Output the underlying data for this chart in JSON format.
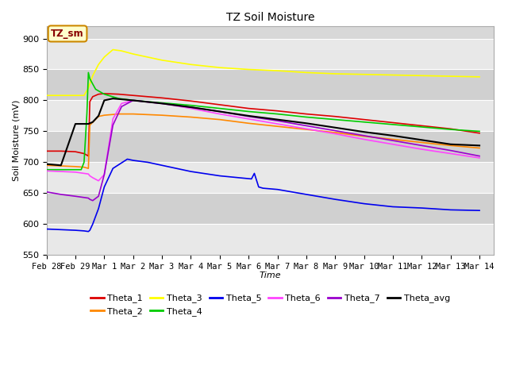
{
  "title": "TZ Soil Moisture",
  "xlabel": "Time",
  "ylabel": "Soil Moisture (mV)",
  "ylim": [
    550,
    920
  ],
  "xlim_days": [
    0,
    15.5
  ],
  "fig_bg_color": "#d8d8d8",
  "plot_bg_color": "#d8d8d8",
  "grid_color": "#ffffff",
  "label_box_text": "TZ_sm",
  "label_box_bg": "#ffffcc",
  "label_box_edge": "#cc8800",
  "label_box_text_color": "#880000",
  "tick_labels": [
    "Feb 28",
    "Feb 29",
    "Mar 1",
    "Mar 2",
    "Mar 3",
    "Mar 4",
    "Mar 5",
    "Mar 6",
    "Mar 7",
    "Mar 8",
    "Mar 9",
    "Mar 10",
    "Mar 11",
    "Mar 12",
    "Mar 13",
    "Mar 14"
  ],
  "tick_positions": [
    0,
    1,
    2,
    3,
    4,
    5,
    6,
    7,
    8,
    9,
    10,
    11,
    12,
    13,
    14,
    15
  ],
  "series": {
    "Theta_1": {
      "color": "#dd0000",
      "lw": 1.2,
      "points": [
        [
          0,
          718
        ],
        [
          0.5,
          718
        ],
        [
          1.0,
          717
        ],
        [
          1.3,
          714
        ],
        [
          1.45,
          710
        ],
        [
          1.5,
          798
        ],
        [
          1.6,
          806
        ],
        [
          1.8,
          810
        ],
        [
          2.0,
          811
        ],
        [
          2.5,
          810
        ],
        [
          3,
          808
        ],
        [
          4,
          804
        ],
        [
          5,
          799
        ],
        [
          6,
          793
        ],
        [
          7,
          787
        ],
        [
          8,
          783
        ],
        [
          9,
          778
        ],
        [
          10,
          774
        ],
        [
          11,
          769
        ],
        [
          12,
          764
        ],
        [
          13,
          759
        ],
        [
          14,
          754
        ],
        [
          15,
          747
        ]
      ]
    },
    "Theta_2": {
      "color": "#ff8800",
      "lw": 1.2,
      "points": [
        [
          0,
          695
        ],
        [
          0.5,
          694
        ],
        [
          1.0,
          693
        ],
        [
          1.3,
          692
        ],
        [
          1.45,
          690
        ],
        [
          1.5,
          760
        ],
        [
          1.8,
          774
        ],
        [
          2.0,
          776
        ],
        [
          2.5,
          778
        ],
        [
          3,
          778
        ],
        [
          4,
          776
        ],
        [
          5,
          773
        ],
        [
          6,
          769
        ],
        [
          7,
          763
        ],
        [
          8,
          758
        ],
        [
          9,
          753
        ],
        [
          10,
          748
        ],
        [
          11,
          742
        ],
        [
          12,
          737
        ],
        [
          13,
          732
        ],
        [
          14,
          727
        ],
        [
          15,
          723
        ]
      ]
    },
    "Theta_3": {
      "color": "#ffff00",
      "lw": 1.2,
      "points": [
        [
          0,
          808
        ],
        [
          0.5,
          808
        ],
        [
          1.0,
          808
        ],
        [
          1.3,
          808
        ],
        [
          1.45,
          820
        ],
        [
          1.6,
          840
        ],
        [
          1.8,
          858
        ],
        [
          2.0,
          870
        ],
        [
          2.3,
          882
        ],
        [
          2.6,
          880
        ],
        [
          3,
          875
        ],
        [
          4,
          865
        ],
        [
          5,
          858
        ],
        [
          6,
          853
        ],
        [
          7,
          850
        ],
        [
          8,
          848
        ],
        [
          9,
          845
        ],
        [
          10,
          843
        ],
        [
          11,
          842
        ],
        [
          12,
          841
        ],
        [
          13,
          840
        ],
        [
          14,
          839
        ],
        [
          15,
          838
        ]
      ]
    },
    "Theta_4": {
      "color": "#00cc00",
      "lw": 1.2,
      "points": [
        [
          0,
          688
        ],
        [
          0.5,
          688
        ],
        [
          1.0,
          688
        ],
        [
          1.2,
          688
        ],
        [
          1.3,
          700
        ],
        [
          1.4,
          780
        ],
        [
          1.45,
          845
        ],
        [
          1.5,
          835
        ],
        [
          1.7,
          818
        ],
        [
          2.0,
          810
        ],
        [
          2.5,
          803
        ],
        [
          3,
          800
        ],
        [
          4,
          796
        ],
        [
          5,
          792
        ],
        [
          6,
          787
        ],
        [
          7,
          782
        ],
        [
          8,
          778
        ],
        [
          9,
          773
        ],
        [
          10,
          769
        ],
        [
          11,
          765
        ],
        [
          12,
          761
        ],
        [
          13,
          757
        ],
        [
          14,
          753
        ],
        [
          15,
          750
        ]
      ]
    },
    "Theta_5": {
      "color": "#0000ee",
      "lw": 1.2,
      "points": [
        [
          0,
          592
        ],
        [
          0.5,
          591
        ],
        [
          1.0,
          590
        ],
        [
          1.3,
          589
        ],
        [
          1.45,
          588
        ],
        [
          1.5,
          590
        ],
        [
          1.6,
          600
        ],
        [
          1.8,
          625
        ],
        [
          2.0,
          660
        ],
        [
          2.3,
          690
        ],
        [
          2.8,
          705
        ],
        [
          3,
          703
        ],
        [
          3.5,
          700
        ],
        [
          4,
          695
        ],
        [
          5,
          685
        ],
        [
          6,
          678
        ],
        [
          7.1,
          673
        ],
        [
          7.2,
          682
        ],
        [
          7.35,
          660
        ],
        [
          7.5,
          658
        ],
        [
          8,
          656
        ],
        [
          9,
          648
        ],
        [
          10,
          640
        ],
        [
          11,
          633
        ],
        [
          12,
          628
        ],
        [
          13,
          626
        ],
        [
          14,
          623
        ],
        [
          15,
          622
        ]
      ]
    },
    "Theta_6": {
      "color": "#ff44ff",
      "lw": 1.2,
      "points": [
        [
          0,
          686
        ],
        [
          0.5,
          685
        ],
        [
          1.0,
          684
        ],
        [
          1.3,
          682
        ],
        [
          1.45,
          681
        ],
        [
          1.5,
          678
        ],
        [
          1.6,
          675
        ],
        [
          1.8,
          670
        ],
        [
          2.0,
          680
        ],
        [
          2.3,
          770
        ],
        [
          2.6,
          795
        ],
        [
          3,
          800
        ],
        [
          4,
          795
        ],
        [
          5,
          787
        ],
        [
          6,
          778
        ],
        [
          7,
          770
        ],
        [
          8,
          762
        ],
        [
          9,
          754
        ],
        [
          10,
          746
        ],
        [
          11,
          737
        ],
        [
          12,
          729
        ],
        [
          13,
          721
        ],
        [
          14,
          714
        ],
        [
          15,
          707
        ]
      ]
    },
    "Theta_7": {
      "color": "#9900cc",
      "lw": 1.2,
      "points": [
        [
          0,
          652
        ],
        [
          0.5,
          648
        ],
        [
          1.0,
          645
        ],
        [
          1.3,
          643
        ],
        [
          1.45,
          642
        ],
        [
          1.5,
          640
        ],
        [
          1.6,
          638
        ],
        [
          1.8,
          645
        ],
        [
          2.0,
          680
        ],
        [
          2.3,
          760
        ],
        [
          2.6,
          790
        ],
        [
          3,
          800
        ],
        [
          4,
          795
        ],
        [
          5,
          789
        ],
        [
          6,
          782
        ],
        [
          7,
          774
        ],
        [
          8,
          767
        ],
        [
          9,
          759
        ],
        [
          10,
          751
        ],
        [
          11,
          743
        ],
        [
          12,
          735
        ],
        [
          13,
          727
        ],
        [
          14,
          719
        ],
        [
          15,
          710
        ]
      ]
    },
    "Theta_avg": {
      "color": "#000000",
      "lw": 1.5,
      "points": [
        [
          0,
          697
        ],
        [
          0.5,
          695
        ],
        [
          1.0,
          762
        ],
        [
          1.3,
          762
        ],
        [
          1.45,
          762
        ],
        [
          1.5,
          763
        ],
        [
          1.6,
          765
        ],
        [
          1.8,
          775
        ],
        [
          2.0,
          800
        ],
        [
          2.3,
          803
        ],
        [
          3,
          800
        ],
        [
          4,
          795
        ],
        [
          5,
          789
        ],
        [
          6,
          782
        ],
        [
          7,
          775
        ],
        [
          8,
          769
        ],
        [
          9,
          763
        ],
        [
          10,
          756
        ],
        [
          11,
          749
        ],
        [
          12,
          743
        ],
        [
          13,
          736
        ],
        [
          14,
          729
        ],
        [
          15,
          727
        ]
      ]
    }
  }
}
